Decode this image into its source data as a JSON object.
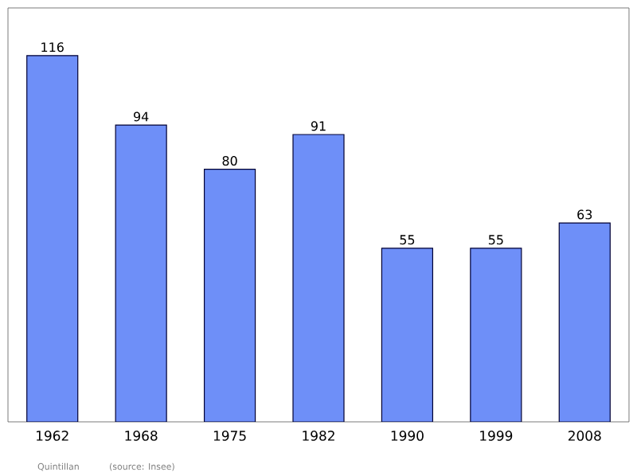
{
  "chart_data": {
    "type": "bar",
    "categories": [
      "1962",
      "1968",
      "1975",
      "1982",
      "1990",
      "1999",
      "2008"
    ],
    "values": [
      116,
      94,
      80,
      91,
      55,
      55,
      63
    ],
    "color": "#6e8ff8",
    "data_labels": true,
    "annotations": [
      "Quintillan",
      "(source: Insee)"
    ]
  }
}
